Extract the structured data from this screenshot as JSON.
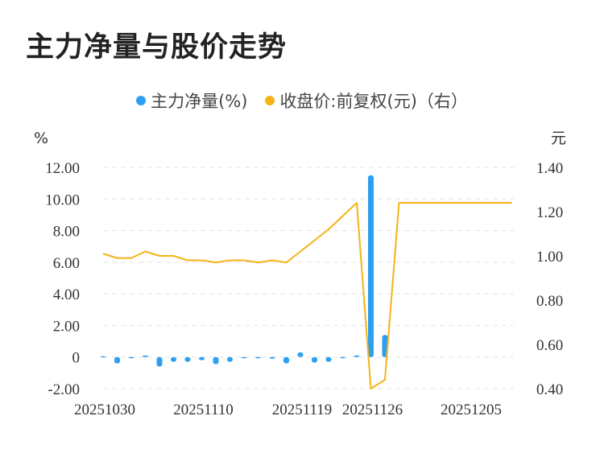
{
  "chart_data": {
    "type": "bar+line",
    "title": "主力净量与股价走势",
    "legend": [
      {
        "name": "主力净量(%)",
        "color": "#2d9ff2"
      },
      {
        "name": "收盘价:前复权(元)（右）",
        "color": "#f5b316"
      }
    ],
    "left_unit": "%",
    "right_unit": "元",
    "y_left_ticks": [
      "12.00",
      "10.00",
      "8.00",
      "6.00",
      "4.00",
      "2.00",
      "0",
      "-2.00"
    ],
    "y_right_ticks": [
      "1.40",
      "1.20",
      "1.00",
      "0.80",
      "0.60",
      "0.40"
    ],
    "y_left_range": [
      -2,
      12
    ],
    "y_right_range": [
      0.4,
      1.4
    ],
    "x_tick_labels": [
      "20251030",
      "20251110",
      "20251119",
      "20251126",
      "20251205"
    ],
    "x_tick_index": [
      0,
      7,
      14,
      19,
      26
    ],
    "bars": [
      0.05,
      -0.4,
      -0.05,
      0.1,
      -0.6,
      -0.3,
      -0.3,
      -0.2,
      -0.45,
      -0.3,
      -0.05,
      -0.03,
      -0.1,
      -0.4,
      0.3,
      -0.35,
      -0.3,
      -0.05,
      0.1,
      11.5,
      1.4,
      0,
      0,
      0,
      0,
      0,
      0,
      0,
      0,
      0
    ],
    "price": [
      1.01,
      0.99,
      0.99,
      1.02,
      1.0,
      1.0,
      0.98,
      0.98,
      0.97,
      0.98,
      0.98,
      0.97,
      0.98,
      0.97,
      1.02,
      1.07,
      1.12,
      1.18,
      1.24,
      0.4,
      0.44,
      1.24,
      1.24,
      1.24,
      1.24,
      1.24,
      1.24,
      1.24,
      1.24,
      1.24
    ]
  }
}
